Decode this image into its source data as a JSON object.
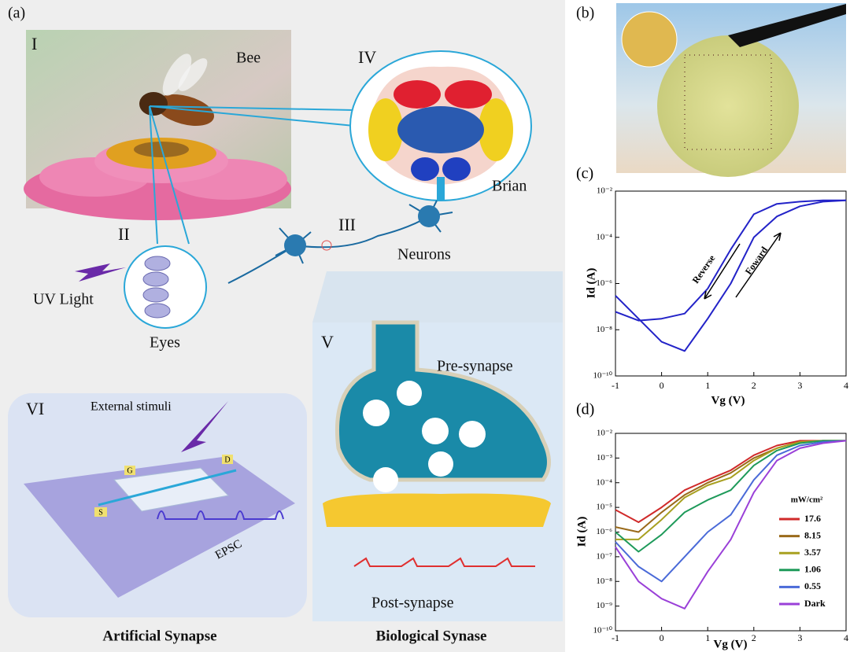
{
  "panel_a": {
    "label": "(a)",
    "bee": {
      "numeral": "I",
      "caption": "Bee"
    },
    "eyes": {
      "numeral": "II",
      "caption": "Eyes",
      "stimulus": "UV Light"
    },
    "neurons": {
      "numeral": "III",
      "caption": "Neurons"
    },
    "brain": {
      "numeral": "IV",
      "caption": "Brian"
    },
    "biological": {
      "numeral": "V",
      "pre": "Pre-synapse",
      "post": "Post-synapse",
      "title": "Biological Synase"
    },
    "artificial": {
      "numeral": "VI",
      "stimulus": "External stimuli",
      "output": "EPSC",
      "gate": "G",
      "drain": "D",
      "source": "S",
      "title": "Artificial Synapse"
    }
  },
  "panel_b": {
    "label": "(b)"
  },
  "chart_data": [
    {
      "type": "line",
      "panel_label": "(c)",
      "xlabel": "Vg (V)",
      "ylabel": "Id (A)",
      "log_y": true,
      "grid": false,
      "x": [
        -1,
        -0.5,
        0,
        0.5,
        1,
        1.5,
        2,
        2.5,
        3,
        3.5,
        4
      ],
      "series": [
        {
          "color": "#2323c8",
          "values": [
            3e-07,
            3e-08,
            3e-09,
            1.2e-09,
            3e-08,
            1e-06,
            0.0001,
            0.0008,
            0.0022,
            0.0035,
            0.004
          ]
        },
        {
          "color": "#2323c8",
          "values": [
            6e-08,
            2.5e-08,
            3e-08,
            5e-08,
            6e-07,
            3e-05,
            0.001,
            0.0028,
            0.0035,
            0.004,
            0.004
          ]
        }
      ],
      "annotations": [
        "Reverse",
        "Foward"
      ],
      "xlim": [
        -1,
        4
      ],
      "xticks": [
        -1,
        0,
        1,
        2,
        3,
        4
      ],
      "ylim": [
        1e-10,
        0.01
      ],
      "yticks": [
        {
          "value": 1e-10,
          "label": "10⁻¹⁰"
        },
        {
          "value": 1e-08,
          "label": "10⁻⁸"
        },
        {
          "value": 1e-06,
          "label": "10⁻⁶"
        },
        {
          "value": 0.0001,
          "label": "10⁻⁴"
        },
        {
          "value": 0.01,
          "label": "10⁻²"
        }
      ]
    },
    {
      "type": "line",
      "panel_label": "(d)",
      "xlabel": "Vg (V)",
      "ylabel": "Id (A)",
      "log_y": true,
      "grid": false,
      "legend": "right",
      "legend_title": "mW/cm²",
      "x": [
        -1,
        -0.5,
        0,
        0.5,
        1,
        1.5,
        2,
        2.5,
        3,
        3.5,
        4
      ],
      "series": [
        {
          "name": "17.6",
          "color": "#d02a2a",
          "values": [
            7.9e-06,
            2.5e-06,
            1e-05,
            5e-05,
            0.00013,
            0.00032,
            0.0013,
            0.0032,
            0.005,
            0.005,
            0.005
          ]
        },
        {
          "name": "8.15",
          "color": "#9a6a1a",
          "values": [
            1.6e-06,
            1e-06,
            6.3e-06,
            3.2e-05,
            0.0001,
            0.00025,
            0.001,
            0.0025,
            0.0045,
            0.005,
            0.005
          ]
        },
        {
          "name": "3.57",
          "color": "#a8a020",
          "values": [
            5e-07,
            5e-07,
            3.2e-06,
            2.5e-05,
            7.9e-05,
            0.00016,
            0.00079,
            0.0025,
            0.0045,
            0.005,
            0.005
          ]
        },
        {
          "name": "1.06",
          "color": "#1e9a5a",
          "values": [
            1e-06,
            1.6e-07,
            7.9e-07,
            6.3e-06,
            2e-05,
            5e-05,
            0.0005,
            0.002,
            0.004,
            0.005,
            0.005
          ]
        },
        {
          "name": "0.55",
          "color": "#4a6ad8",
          "values": [
            4e-07,
            4e-08,
            1e-08,
            1e-07,
            1e-06,
            5e-06,
            0.00013,
            0.0013,
            0.0032,
            0.0045,
            0.005
          ]
        },
        {
          "name": "Dark",
          "color": "#9a40d8",
          "values": [
            2.5e-07,
            1e-08,
            2e-09,
            7.9e-10,
            2.5e-08,
            5e-07,
            4e-05,
            0.00079,
            0.0025,
            0.004,
            0.005
          ]
        }
      ],
      "xlim": [
        -1,
        4
      ],
      "xticks": [
        -1,
        0,
        1,
        2,
        3,
        4
      ],
      "ylim": [
        1e-10,
        0.01
      ],
      "yticks": [
        {
          "value": 1e-10,
          "label": "10⁻¹⁰"
        },
        {
          "value": 1e-09,
          "label": "10⁻⁹"
        },
        {
          "value": 1e-08,
          "label": "10⁻⁸"
        },
        {
          "value": 1e-07,
          "label": "10⁻⁷"
        },
        {
          "value": 1e-06,
          "label": "10⁻⁶"
        },
        {
          "value": 1e-05,
          "label": "10⁻⁵"
        },
        {
          "value": 0.0001,
          "label": "10⁻⁴"
        },
        {
          "value": 0.001,
          "label": "10⁻³"
        },
        {
          "value": 0.01,
          "label": "10⁻²"
        }
      ]
    }
  ]
}
